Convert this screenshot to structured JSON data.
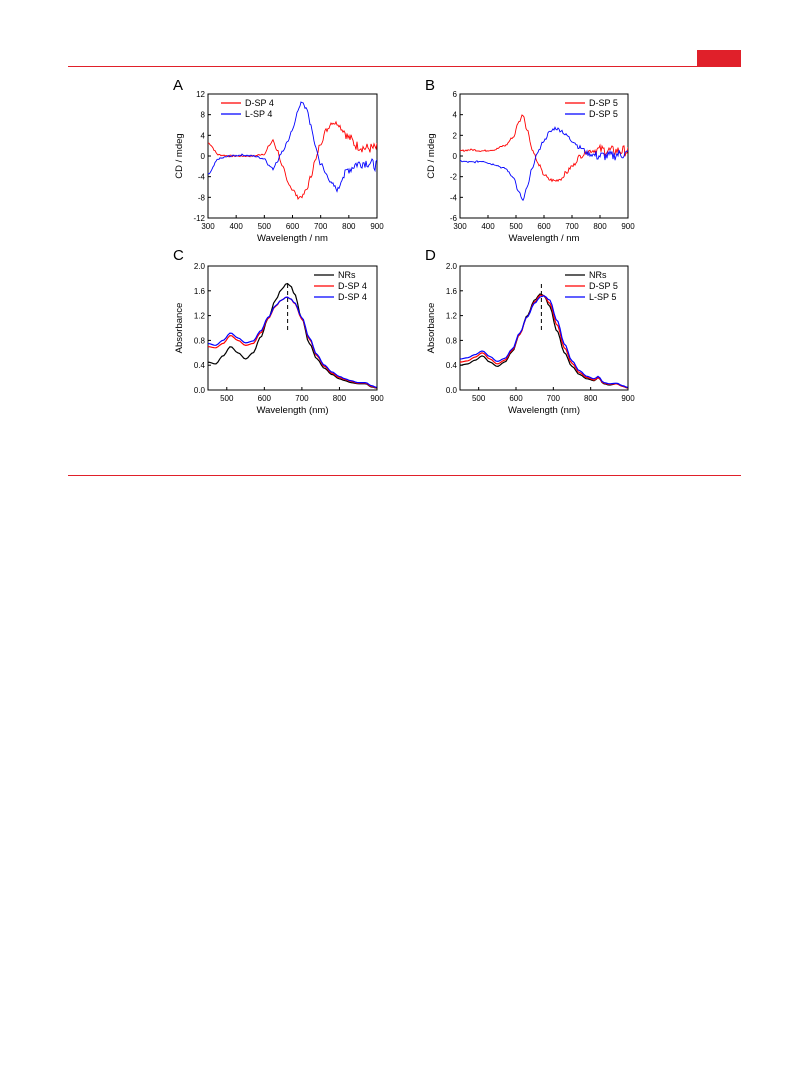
{
  "colors": {
    "accent": "#e0202a",
    "red": "#ff0000",
    "blue": "#0000ff",
    "black": "#000000"
  },
  "chart_data": [
    {
      "type": "line",
      "panel_label": "A",
      "xlabel": "Wavelength / nm",
      "ylabel": "CD / mdeg",
      "xlim": [
        300,
        900
      ],
      "ylim": [
        -12,
        12
      ],
      "xticks": [
        "300",
        "400",
        "500",
        "600",
        "700",
        "800",
        "900"
      ],
      "yticks": [
        "-12",
        "-8",
        "-4",
        "0",
        "4",
        "8",
        "12"
      ],
      "legend": "top-left",
      "noisy": true,
      "x": [
        300,
        340,
        380,
        420,
        460,
        500,
        520,
        530,
        545,
        565,
        585,
        600,
        620,
        635,
        650,
        665,
        680,
        700,
        720,
        740,
        760,
        780,
        800,
        830,
        860,
        900
      ],
      "series": [
        {
          "name": "D-SP 4",
          "color": "#ff0000",
          "values": [
            2.5,
            0.2,
            0,
            0,
            0,
            0.4,
            2.2,
            3,
            1.2,
            -2.2,
            -5.2,
            -6.5,
            -8,
            -7.8,
            -6.5,
            -4,
            -1,
            2.5,
            5,
            6.5,
            6.3,
            5,
            3.5,
            2,
            1.5,
            1.5
          ]
        },
        {
          "name": "L-SP  4",
          "color": "#0000ff",
          "values": [
            -3.5,
            -0.5,
            0,
            0.2,
            0,
            -0.5,
            -2,
            -2.5,
            -1,
            1,
            3,
            5,
            9,
            10.5,
            9,
            6,
            2,
            -1.5,
            -3.5,
            -5.5,
            -6.5,
            -4,
            -2.5,
            -1.5,
            -1.2,
            -1.8
          ]
        }
      ]
    },
    {
      "type": "line",
      "panel_label": "B",
      "xlabel": "Wavelength / nm",
      "ylabel": "CD / mdeg",
      "xlim": [
        300,
        900
      ],
      "ylim": [
        -6,
        6
      ],
      "xticks": [
        "300",
        "400",
        "500",
        "600",
        "700",
        "800",
        "900"
      ],
      "yticks": [
        "-6",
        "-4",
        "-2",
        "0",
        "2",
        "4",
        "6"
      ],
      "legend": "top-right",
      "noisy": true,
      "x": [
        300,
        340,
        380,
        420,
        460,
        490,
        510,
        525,
        540,
        560,
        580,
        600,
        620,
        640,
        660,
        680,
        700,
        730,
        760,
        800,
        840,
        870,
        900
      ],
      "series": [
        {
          "name": "D-SP 5",
          "color": "#ff0000",
          "values": [
            0.5,
            0.6,
            0.5,
            0.6,
            1,
            1.8,
            3.3,
            4,
            2.5,
            0.5,
            -0.8,
            -1.8,
            -2.3,
            -2.4,
            -2.2,
            -1.6,
            -1,
            0,
            0.5,
            0.6,
            0.5,
            0.5,
            0.5
          ]
        },
        {
          "name": "D-SP 5",
          "color": "#0000ff",
          "values": [
            -0.5,
            -0.6,
            -0.5,
            -0.8,
            -1.2,
            -2,
            -3.5,
            -4.3,
            -3,
            -1,
            0.5,
            1.5,
            2.3,
            2.7,
            2.5,
            2,
            1.5,
            0.8,
            0.2,
            0,
            0,
            0.2,
            0.2
          ]
        }
      ]
    },
    {
      "type": "line",
      "panel_label": "C",
      "xlabel": "Wavelength (nm)",
      "ylabel": "Absorbance",
      "xlim": [
        450,
        900
      ],
      "ylim": [
        0,
        2.0
      ],
      "xticks": [
        "500",
        "600",
        "700",
        "800",
        "900"
      ],
      "yticks": [
        "0.0",
        "0.4",
        "0.8",
        "1.2",
        "1.6",
        "2.0"
      ],
      "legend": "top-right",
      "noisy": false,
      "dashed_marker_x": 662,
      "x": [
        450,
        470,
        490,
        510,
        530,
        550,
        570,
        590,
        610,
        630,
        645,
        660,
        670,
        680,
        700,
        720,
        740,
        760,
        780,
        800,
        815,
        830,
        850,
        870,
        885,
        900
      ],
      "series": [
        {
          "name": "NRs",
          "color": "#000000",
          "values": [
            0.45,
            0.42,
            0.55,
            0.7,
            0.6,
            0.5,
            0.6,
            0.85,
            1.15,
            1.45,
            1.62,
            1.72,
            1.68,
            1.55,
            1.15,
            0.75,
            0.5,
            0.35,
            0.25,
            0.18,
            0.15,
            0.12,
            0.1,
            0.1,
            0.05,
            0.03
          ]
        },
        {
          "name": "D-SP 4",
          "color": "#ff0000",
          "values": [
            0.7,
            0.68,
            0.75,
            0.88,
            0.8,
            0.72,
            0.75,
            0.92,
            1.15,
            1.35,
            1.45,
            1.5,
            1.47,
            1.4,
            1.15,
            0.82,
            0.55,
            0.38,
            0.27,
            0.2,
            0.17,
            0.14,
            0.11,
            0.11,
            0.06,
            0.03
          ]
        },
        {
          "name": "D-SP 4",
          "color": "#0000ff",
          "values": [
            0.75,
            0.72,
            0.8,
            0.92,
            0.84,
            0.76,
            0.79,
            0.95,
            1.17,
            1.36,
            1.45,
            1.5,
            1.47,
            1.41,
            1.17,
            0.84,
            0.57,
            0.4,
            0.29,
            0.22,
            0.18,
            0.15,
            0.12,
            0.12,
            0.07,
            0.04
          ]
        }
      ]
    },
    {
      "type": "line",
      "panel_label": "D",
      "xlabel": "Wavelength (nm)",
      "ylabel": "Absorbance",
      "xlim": [
        450,
        900
      ],
      "ylim": [
        0,
        2.0
      ],
      "xticks": [
        "500",
        "600",
        "700",
        "800",
        "900"
      ],
      "yticks": [
        "0.0",
        "0.4",
        "0.8",
        "1.2",
        "1.6",
        "2.0"
      ],
      "legend": "top-right",
      "noisy": false,
      "dashed_marker_x": 668,
      "x": [
        450,
        470,
        490,
        510,
        530,
        550,
        570,
        590,
        610,
        630,
        650,
        665,
        675,
        690,
        710,
        730,
        750,
        770,
        790,
        810,
        820,
        835,
        850,
        870,
        885,
        900
      ],
      "series": [
        {
          "name": "NRs",
          "color": "#000000",
          "values": [
            0.4,
            0.42,
            0.48,
            0.55,
            0.45,
            0.38,
            0.45,
            0.62,
            0.9,
            1.2,
            1.45,
            1.55,
            1.52,
            1.35,
            0.95,
            0.6,
            0.38,
            0.25,
            0.18,
            0.15,
            0.2,
            0.1,
            0.08,
            0.1,
            0.06,
            0.03
          ]
        },
        {
          "name": "D-SP 5",
          "color": "#ff0000",
          "values": [
            0.45,
            0.47,
            0.53,
            0.6,
            0.5,
            0.42,
            0.48,
            0.64,
            0.9,
            1.18,
            1.42,
            1.53,
            1.52,
            1.4,
            1.05,
            0.68,
            0.43,
            0.28,
            0.2,
            0.16,
            0.2,
            0.11,
            0.09,
            0.1,
            0.06,
            0.03
          ]
        },
        {
          "name": "L-SP 5",
          "color": "#0000ff",
          "values": [
            0.5,
            0.52,
            0.57,
            0.63,
            0.54,
            0.46,
            0.51,
            0.66,
            0.92,
            1.18,
            1.4,
            1.5,
            1.52,
            1.45,
            1.12,
            0.74,
            0.47,
            0.31,
            0.22,
            0.18,
            0.22,
            0.12,
            0.1,
            0.11,
            0.07,
            0.04
          ]
        }
      ]
    }
  ]
}
